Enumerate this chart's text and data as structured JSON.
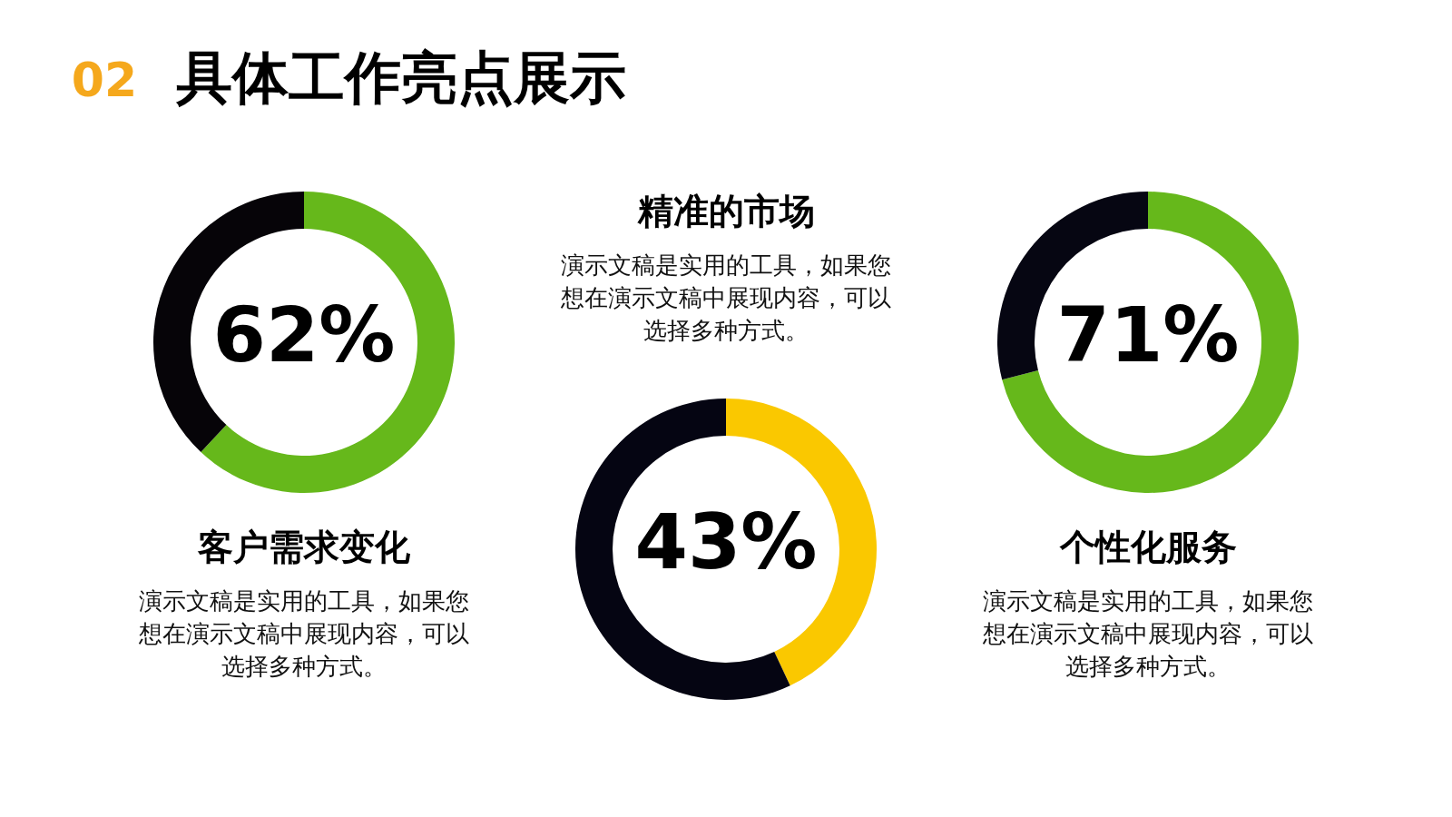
{
  "chart_data": [
    {
      "type": "other",
      "title": "具体工作亮点展示",
      "annotations": [
        "02"
      ]
    },
    {
      "type": "donut",
      "title": "客户需求变化",
      "categories": [
        null,
        null
      ],
      "values": [
        62,
        38
      ],
      "colors": [
        "#66b81b",
        "#060408"
      ],
      "annotations": [
        "62%",
        "演示文稿是实用的工具，如果您想在演示文稿中展现内容，可以选择多种方式。"
      ]
    },
    {
      "type": "donut",
      "title": "精准的市场",
      "categories": [
        null,
        null
      ],
      "values": [
        43,
        57
      ],
      "colors": [
        "#fac800",
        "#050512"
      ],
      "annotations": [
        "43%",
        "演示文稿是实用的工具，如果您想在演示文稿中展现内容，可以选择多种方式。"
      ]
    },
    {
      "type": "donut",
      "title": "个性化服务",
      "categories": [
        null,
        null
      ],
      "values": [
        71,
        29
      ],
      "colors": [
        "#66b81b",
        "#060612"
      ],
      "annotations": [
        "71%",
        "演示文稿是实用的工具，如果您想在演示文稿中展现内容，可以选择多种方式。"
      ]
    }
  ]
}
